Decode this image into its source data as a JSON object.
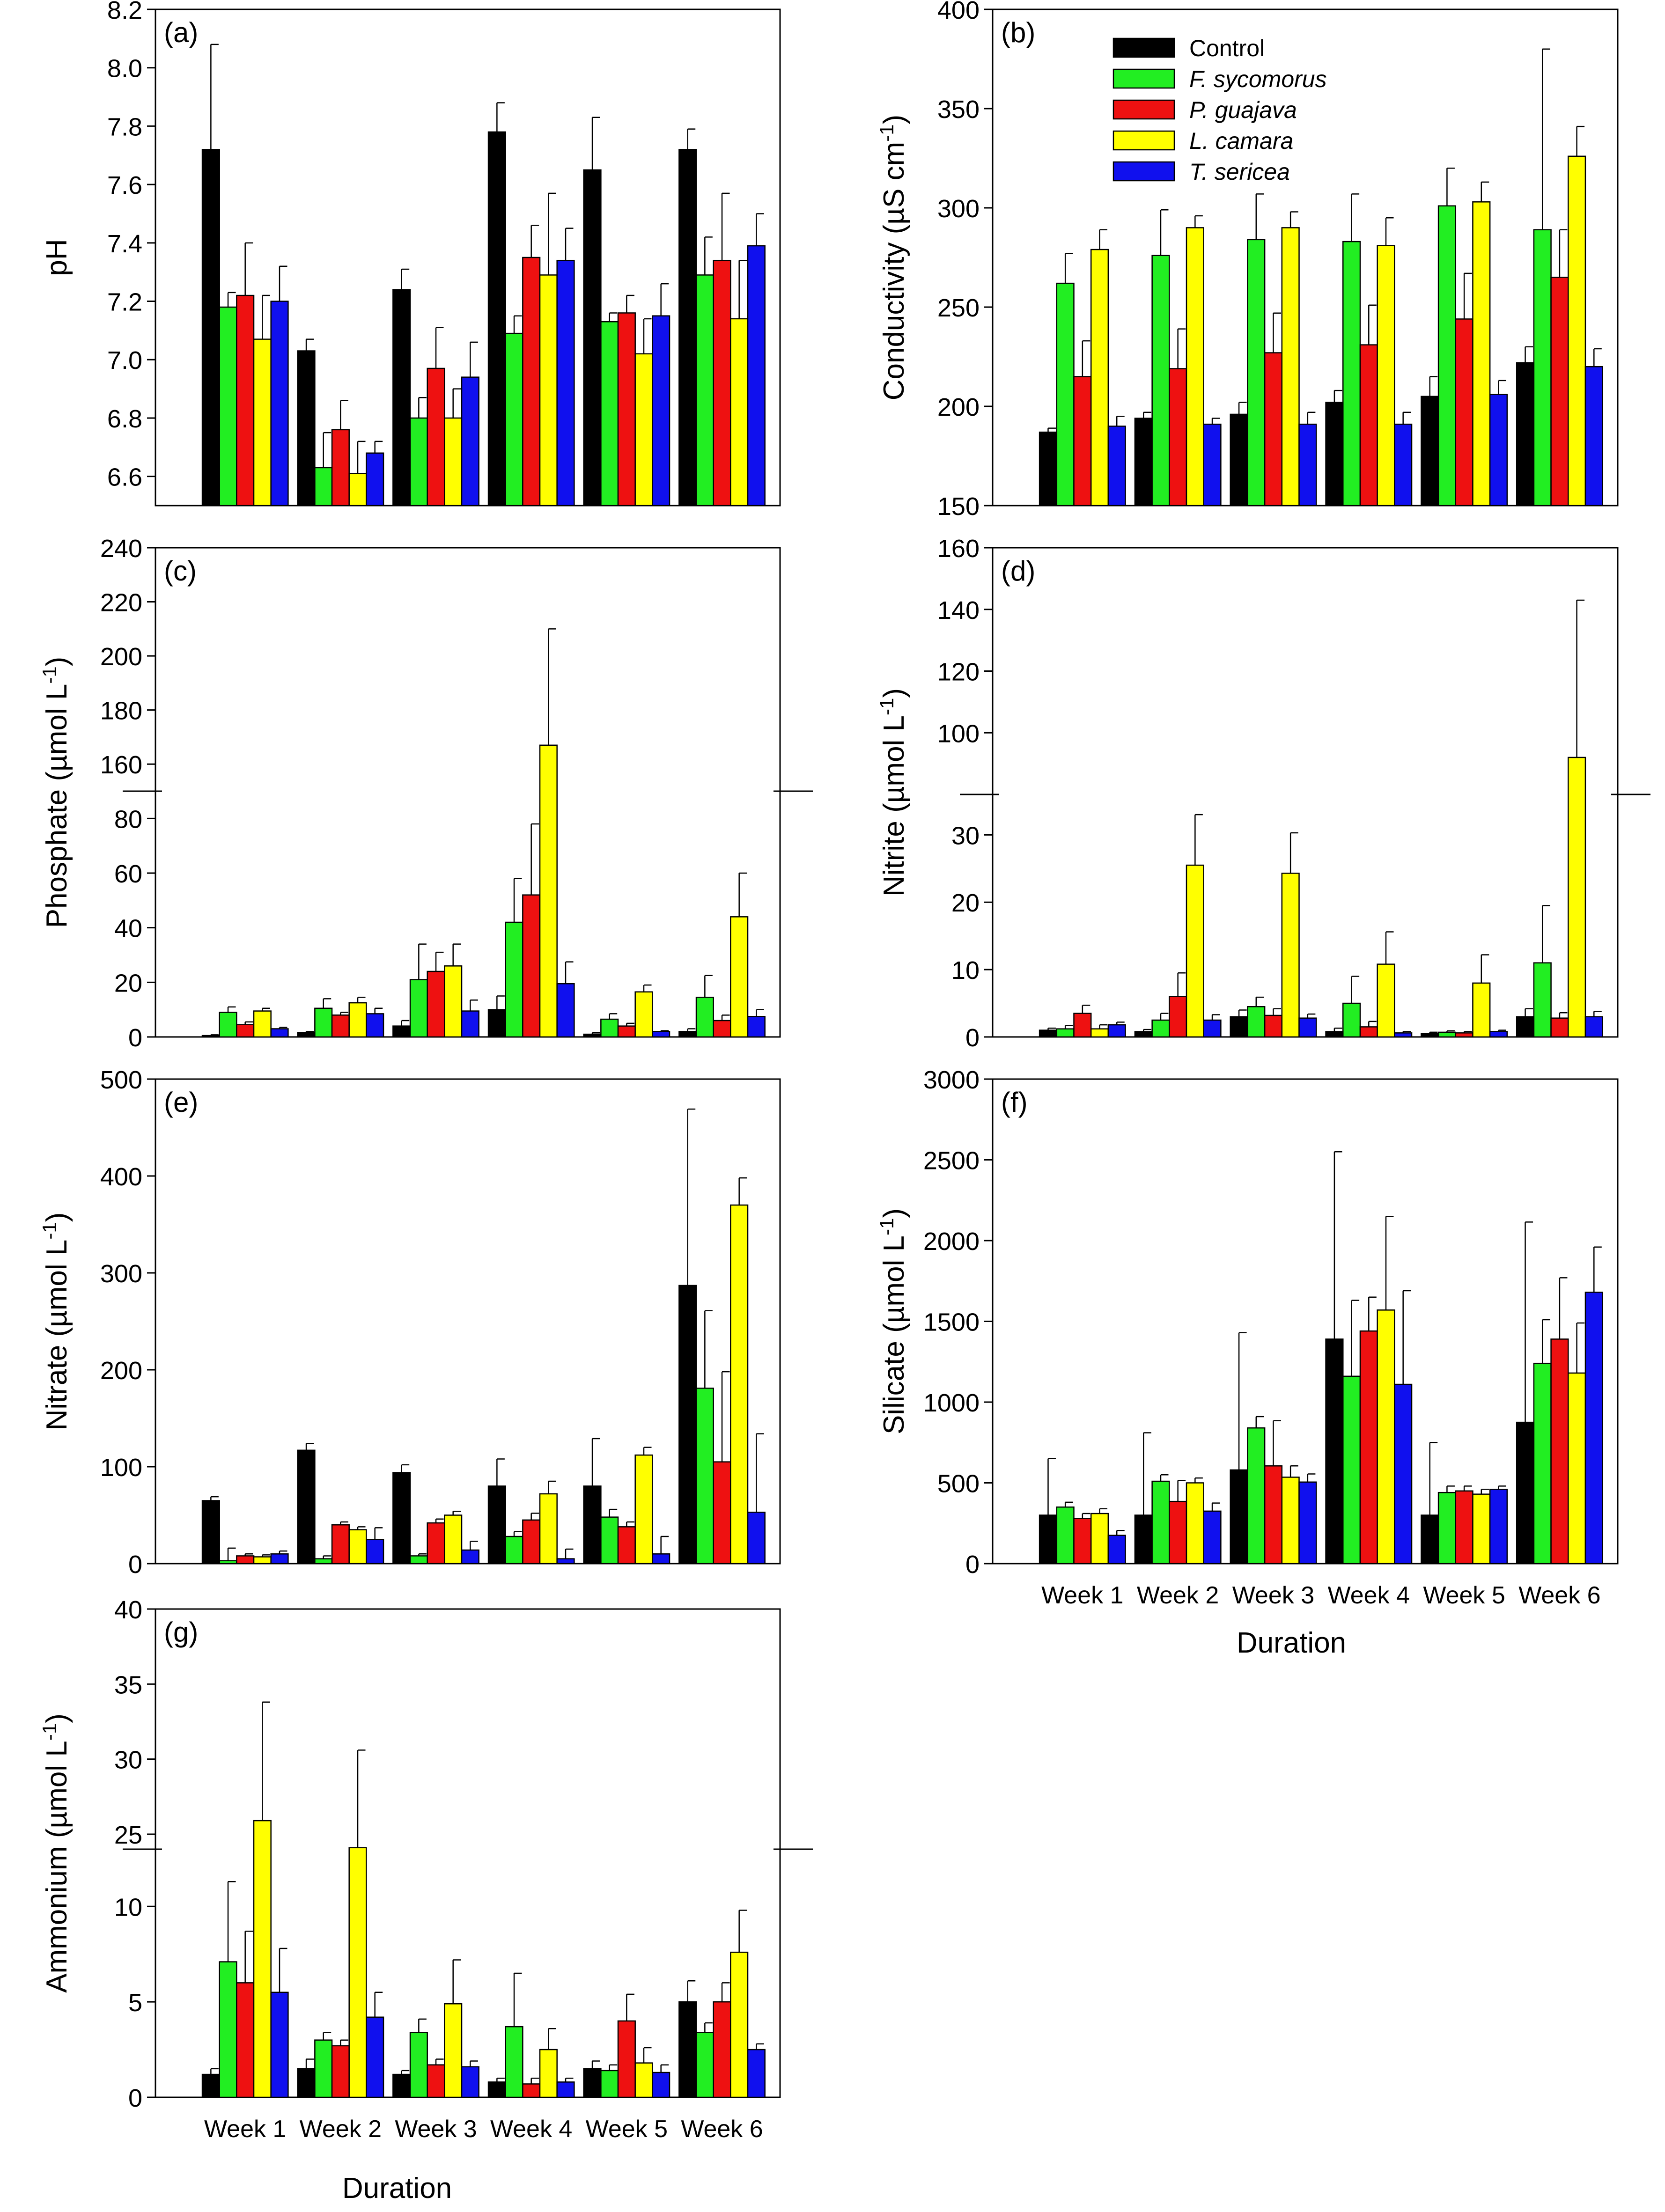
{
  "figure": {
    "x_title": "Duration"
  },
  "categories": [
    "Week 1",
    "Week 2",
    "Week 3",
    "Week 4",
    "Week 5",
    "Week 6"
  ],
  "legend": [
    {
      "name": "Control",
      "color": "#000000",
      "italic": false
    },
    {
      "name": "F. sycomorus",
      "color": "#22ee22",
      "italic": true
    },
    {
      "name": "P. guajava",
      "color": "#ee1111",
      "italic": true
    },
    {
      "name": "L. camara",
      "color": "#ffff00",
      "italic": true
    },
    {
      "name": "T. sericea",
      "color": "#1010ee",
      "italic": true
    }
  ],
  "chart_data": [
    {
      "panel": "a",
      "label": "(a)",
      "type": "bar",
      "ylabel": "pH",
      "ylim": [
        6.5,
        8.2
      ],
      "yticks": [
        "6.6",
        "6.8",
        "7.0",
        "7.2",
        "7.4",
        "7.6",
        "7.8",
        "8.0",
        "8.2"
      ],
      "categories": [
        "Week 1",
        "Week 2",
        "Week 3",
        "Week 4",
        "Week 5",
        "Week 6"
      ],
      "series": [
        {
          "name": "Control",
          "values": [
            7.72,
            7.03,
            7.24,
            7.78,
            7.65,
            7.72
          ],
          "errors": [
            0.36,
            0.04,
            0.07,
            0.1,
            0.18,
            0.07
          ]
        },
        {
          "name": "F. sycomorus",
          "values": [
            7.18,
            6.63,
            6.8,
            7.09,
            7.13,
            7.29
          ],
          "errors": [
            0.05,
            0.12,
            0.07,
            0.06,
            0.03,
            0.13
          ]
        },
        {
          "name": "P. guajava",
          "values": [
            7.22,
            6.76,
            6.97,
            7.35,
            7.16,
            7.34
          ],
          "errors": [
            0.18,
            0.1,
            0.14,
            0.11,
            0.06,
            0.23
          ]
        },
        {
          "name": "L. camara",
          "values": [
            7.07,
            6.61,
            6.8,
            7.29,
            7.02,
            7.14
          ],
          "errors": [
            0.15,
            0.11,
            0.1,
            0.28,
            0.12,
            0.2
          ]
        },
        {
          "name": "T. sericea",
          "values": [
            7.2,
            6.68,
            6.94,
            7.34,
            7.15,
            7.39
          ],
          "errors": [
            0.12,
            0.04,
            0.12,
            0.11,
            0.11,
            0.11
          ]
        }
      ]
    },
    {
      "panel": "b",
      "label": "(b)",
      "type": "bar",
      "ylabel": "Conductivity (µS cm⁻¹)",
      "ylim": [
        150,
        400
      ],
      "yticks": [
        "150",
        "200",
        "250",
        "300",
        "350",
        "400"
      ],
      "categories": [
        "Week 1",
        "Week 2",
        "Week 3",
        "Week 4",
        "Week 5",
        "Week 6"
      ],
      "series": [
        {
          "name": "Control",
          "values": [
            187,
            194,
            196,
            202,
            205,
            222
          ],
          "errors": [
            2,
            3,
            6,
            6,
            10,
            8
          ]
        },
        {
          "name": "F. sycomorus",
          "values": [
            262,
            276,
            284,
            283,
            301,
            289
          ],
          "errors": [
            15,
            23,
            23,
            24,
            19,
            91
          ]
        },
        {
          "name": "P. guajava",
          "values": [
            215,
            219,
            227,
            231,
            244,
            265
          ],
          "errors": [
            18,
            20,
            20,
            20,
            23,
            24
          ]
        },
        {
          "name": "L. camara",
          "values": [
            279,
            290,
            290,
            281,
            303,
            326
          ],
          "errors": [
            10,
            6,
            8,
            14,
            10,
            15
          ]
        },
        {
          "name": "T. sericea",
          "values": [
            190,
            191,
            191,
            191,
            206,
            220
          ],
          "errors": [
            5,
            3,
            6,
            6,
            7,
            9
          ]
        }
      ]
    },
    {
      "panel": "c",
      "label": "(c)",
      "type": "bar",
      "axis_break": true,
      "ylabel": "Phosphate (µmol L⁻¹)",
      "lower": {
        "ylim": [
          0,
          90
        ],
        "yticks": [
          "0",
          "20",
          "40",
          "60",
          "80"
        ]
      },
      "upper": {
        "ylim": [
          150,
          240
        ],
        "yticks": [
          "160",
          "180",
          "200",
          "220",
          "240"
        ]
      },
      "categories": [
        "Week 1",
        "Week 2",
        "Week 3",
        "Week 4",
        "Week 5",
        "Week 6"
      ],
      "series": [
        {
          "name": "Control",
          "values": [
            0.5,
            1.5,
            4,
            10,
            1,
            2
          ],
          "errors": [
            0.3,
            0.5,
            2,
            5,
            0.5,
            1
          ]
        },
        {
          "name": "F. sycomorus",
          "values": [
            9,
            10.5,
            21,
            42,
            6.5,
            14.5
          ],
          "errors": [
            2,
            3.5,
            13,
            16,
            2,
            8
          ]
        },
        {
          "name": "P. guajava",
          "values": [
            4.5,
            8,
            24,
            52,
            4,
            6
          ],
          "errors": [
            1,
            1,
            7,
            26,
            1,
            2
          ]
        },
        {
          "name": "L. camara",
          "values": [
            9.5,
            12.5,
            26,
            167,
            16.5,
            44
          ],
          "errors": [
            1,
            2,
            8,
            43,
            2.5,
            16
          ]
        },
        {
          "name": "T. sericea",
          "values": [
            3,
            8.5,
            9.5,
            19.5,
            2,
            7.5
          ],
          "errors": [
            0.5,
            2,
            4,
            8,
            0.3,
            2.5
          ]
        }
      ]
    },
    {
      "panel": "d",
      "label": "(d)",
      "type": "bar",
      "axis_break": true,
      "ylabel": "Nitrite (µmol L⁻¹)",
      "lower": {
        "ylim": [
          0,
          36
        ],
        "yticks": [
          "0",
          "10",
          "20",
          "30"
        ]
      },
      "upper": {
        "ylim": [
          80,
          160
        ],
        "yticks": [
          "100",
          "120",
          "140",
          "160"
        ]
      },
      "categories": [
        "Week 1",
        "Week 2",
        "Week 3",
        "Week 4",
        "Week 5",
        "Week 6"
      ],
      "series": [
        {
          "name": "Control",
          "values": [
            1,
            0.8,
            3,
            0.8,
            0.5,
            3
          ],
          "errors": [
            0.3,
            0.3,
            1,
            0.5,
            0.2,
            1.2
          ]
        },
        {
          "name": "F. sycomorus",
          "values": [
            1.2,
            2.5,
            4.5,
            5,
            0.7,
            11
          ],
          "errors": [
            0.5,
            1,
            1.4,
            4,
            0.2,
            8.5
          ]
        },
        {
          "name": "P. guajava",
          "values": [
            3.5,
            6,
            3.2,
            1.5,
            0.6,
            2.8
          ],
          "errors": [
            1.2,
            3.5,
            1,
            0.8,
            0.2,
            0.8
          ]
        },
        {
          "name": "L. camara",
          "values": [
            1.2,
            25.5,
            24.3,
            10.8,
            8,
            92
          ],
          "errors": [
            0.6,
            7.5,
            6,
            4.8,
            4.2,
            51
          ]
        },
        {
          "name": "T. sericea",
          "values": [
            1.8,
            2.5,
            2.8,
            0.6,
            0.8,
            3
          ],
          "errors": [
            0.4,
            0.8,
            0.6,
            0.2,
            0.2,
            0.8
          ]
        }
      ]
    },
    {
      "panel": "e",
      "label": "(e)",
      "type": "bar",
      "ylabel": "Nitrate (µmol L⁻¹)",
      "ylim": [
        0,
        500
      ],
      "yticks": [
        "0",
        "100",
        "200",
        "300",
        "400",
        "500"
      ],
      "categories": [
        "Week 1",
        "Week 2",
        "Week 3",
        "Week 4",
        "Week 5",
        "Week 6"
      ],
      "series": [
        {
          "name": "Control",
          "values": [
            65,
            117,
            94,
            80,
            80,
            287
          ],
          "errors": [
            4,
            7,
            8,
            28,
            49,
            182
          ]
        },
        {
          "name": "F. sycomorus",
          "values": [
            3,
            5,
            8,
            28,
            48,
            181
          ],
          "errors": [
            13,
            3,
            2,
            5,
            8,
            80
          ]
        },
        {
          "name": "P. guajava",
          "values": [
            8,
            40,
            42,
            45,
            38,
            105
          ],
          "errors": [
            2,
            3,
            4,
            7,
            5,
            93
          ]
        },
        {
          "name": "L. camara",
          "values": [
            7,
            35,
            50,
            72,
            112,
            370
          ],
          "errors": [
            2,
            3,
            4,
            13,
            8,
            28
          ]
        },
        {
          "name": "T. sericea",
          "values": [
            10,
            25,
            14,
            5,
            10,
            53
          ],
          "errors": [
            3,
            12,
            9,
            10,
            18,
            81
          ]
        }
      ]
    },
    {
      "panel": "f",
      "label": "(f)",
      "type": "bar",
      "ylabel": "Silicate (µmol L⁻¹)",
      "ylim": [
        0,
        3000
      ],
      "yticks": [
        "0",
        "500",
        "1000",
        "1500",
        "2000",
        "2500",
        "3000"
      ],
      "categories": [
        "Week 1",
        "Week 2",
        "Week 3",
        "Week 4",
        "Week 5",
        "Week 6"
      ],
      "series": [
        {
          "name": "Control",
          "values": [
            300,
            300,
            580,
            1390,
            300,
            875
          ],
          "errors": [
            350,
            510,
            850,
            1160,
            450,
            1240
          ]
        },
        {
          "name": "F. sycomorus",
          "values": [
            350,
            510,
            840,
            1160,
            440,
            1240
          ],
          "errors": [
            30,
            40,
            70,
            470,
            40,
            270
          ]
        },
        {
          "name": "P. guajava",
          "values": [
            280,
            385,
            605,
            1440,
            450,
            1390
          ],
          "errors": [
            30,
            130,
            280,
            210,
            30,
            380
          ]
        },
        {
          "name": "L. camara",
          "values": [
            310,
            500,
            535,
            1570,
            430,
            1180
          ],
          "errors": [
            30,
            30,
            70,
            580,
            30,
            310
          ]
        },
        {
          "name": "T. sericea",
          "values": [
            175,
            325,
            505,
            1110,
            460,
            1680
          ],
          "errors": [
            30,
            50,
            50,
            580,
            20,
            280
          ]
        }
      ]
    },
    {
      "panel": "g",
      "label": "(g)",
      "type": "bar",
      "axis_break": true,
      "ylabel": "Ammonium (µmol L⁻¹)",
      "lower": {
        "ylim": [
          0,
          13
        ],
        "yticks": [
          "0",
          "5",
          "10"
        ]
      },
      "upper": {
        "ylim": [
          24,
          40
        ],
        "yticks": [
          "25",
          "30",
          "35",
          "40"
        ]
      },
      "categories": [
        "Week 1",
        "Week 2",
        "Week 3",
        "Week 4",
        "Week 5",
        "Week 6"
      ],
      "series": [
        {
          "name": "Control",
          "values": [
            1.2,
            1.5,
            1.2,
            0.8,
            1.5,
            5
          ],
          "errors": [
            0.3,
            0.5,
            0.2,
            0.2,
            0.4,
            1.1
          ]
        },
        {
          "name": "F. sycomorus",
          "values": [
            7.1,
            3,
            3.4,
            3.7,
            1.4,
            3.4
          ],
          "errors": [
            4.2,
            0.4,
            0.7,
            2.8,
            0.3,
            0.5
          ]
        },
        {
          "name": "P. guajava",
          "values": [
            6,
            2.7,
            1.7,
            0.7,
            4,
            5
          ],
          "errors": [
            2.7,
            0.3,
            0.3,
            0.3,
            1.4,
            1
          ]
        },
        {
          "name": "L. camara",
          "values": [
            25.9,
            24.1,
            4.9,
            2.5,
            1.8,
            7.6
          ],
          "errors": [
            7.9,
            6.5,
            2.3,
            1.1,
            0.8,
            2.2
          ]
        },
        {
          "name": "T. sericea",
          "values": [
            5.5,
            4.2,
            1.6,
            0.8,
            1.3,
            2.5
          ],
          "errors": [
            2.3,
            1.3,
            0.3,
            0.2,
            0.4,
            0.3
          ]
        }
      ]
    }
  ]
}
